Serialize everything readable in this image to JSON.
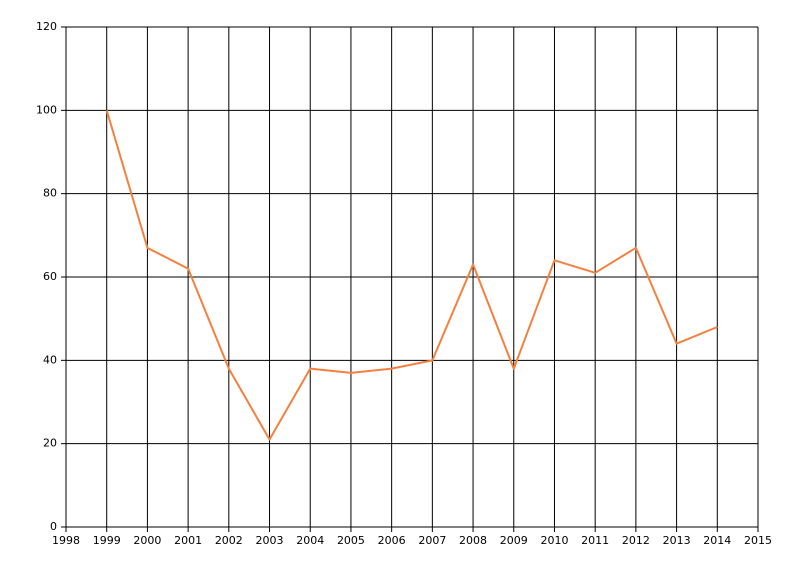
{
  "chart_data": {
    "type": "line",
    "x": [
      1999,
      2000,
      2001,
      2002,
      2003,
      2004,
      2005,
      2006,
      2007,
      2008,
      2009,
      2010,
      2011,
      2012,
      2013,
      2014
    ],
    "series": [
      {
        "color": "#f4803f",
        "values": [
          100,
          67,
          62,
          38,
          21,
          38,
          37,
          38,
          40,
          63,
          38,
          64,
          61,
          67,
          44,
          48
        ]
      }
    ],
    "xlim": [
      1998,
      2015
    ],
    "xticks": [
      1998,
      1999,
      2000,
      2001,
      2002,
      2003,
      2004,
      2005,
      2006,
      2007,
      2008,
      2009,
      2010,
      2011,
      2012,
      2013,
      2014,
      2015
    ],
    "ylim": [
      0,
      120
    ],
    "yticks": [
      0,
      20,
      40,
      60,
      80,
      100,
      120
    ],
    "grid": true
  }
}
